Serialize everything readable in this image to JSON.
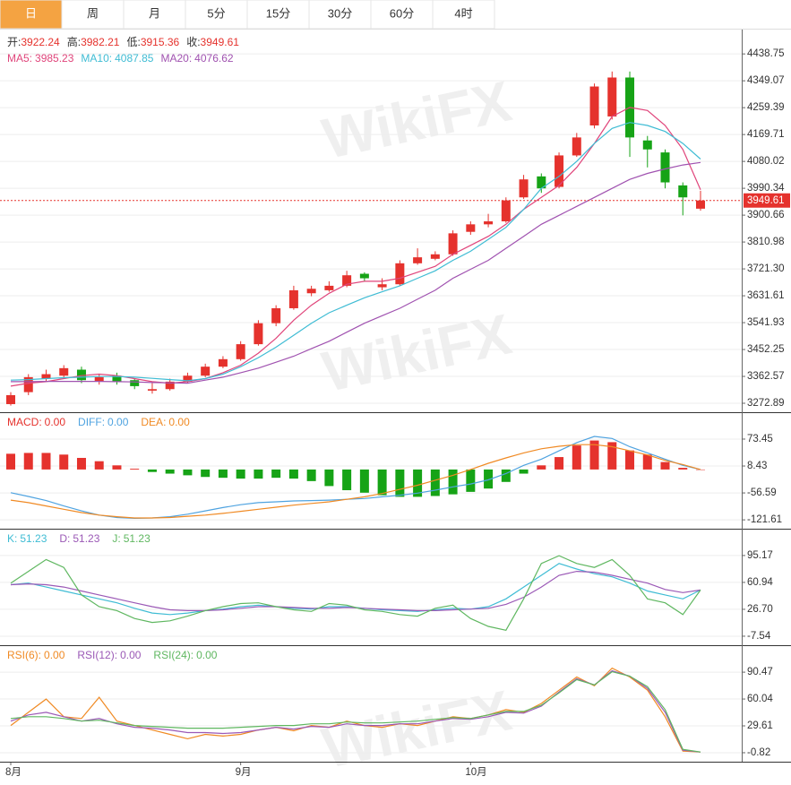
{
  "tabs": [
    "日",
    "周",
    "月",
    "5分",
    "15分",
    "30分",
    "60分",
    "4时"
  ],
  "watermark": "WikiFX",
  "chart_data": [
    {
      "type": "candlestick",
      "ohlc_labels": [
        "开:",
        "高:",
        "低:",
        "收:"
      ],
      "up_color": "#e5322d",
      "down_color": "#16a316",
      "open": [
        3270,
        3310,
        3355,
        3365,
        3385,
        3345,
        3365,
        3350,
        3315,
        3320,
        3345,
        3365,
        3395,
        3420,
        3470,
        3540,
        3590,
        3640,
        3650,
        3665,
        3705,
        3660,
        3670,
        3740,
        3755,
        3770,
        3845,
        3870,
        3880,
        3960,
        4030,
        3995,
        4100,
        4200,
        4230,
        4360,
        4150,
        4110,
        4000,
        3922.24
      ],
      "high": [
        3310,
        3370,
        3385,
        3400,
        3395,
        3370,
        3375,
        3355,
        3340,
        3355,
        3375,
        3405,
        3430,
        3480,
        3550,
        3600,
        3665,
        3665,
        3680,
        3715,
        3710,
        3690,
        3750,
        3790,
        3780,
        3850,
        3880,
        3905,
        3960,
        4035,
        4040,
        4110,
        4175,
        4340,
        4380,
        4380,
        4165,
        4120,
        4010,
        3982.21
      ],
      "low": [
        3265,
        3300,
        3345,
        3355,
        3340,
        3335,
        3335,
        3320,
        3305,
        3315,
        3340,
        3360,
        3390,
        3415,
        3465,
        3530,
        3585,
        3630,
        3645,
        3660,
        3680,
        3650,
        3665,
        3735,
        3750,
        3765,
        3835,
        3860,
        3875,
        3955,
        3975,
        3990,
        4095,
        4190,
        4220,
        4095,
        4060,
        3990,
        3900,
        3915.36
      ],
      "close": [
        3300,
        3360,
        3370,
        3390,
        3350,
        3360,
        3345,
        3330,
        3320,
        3345,
        3365,
        3395,
        3420,
        3470,
        3540,
        3590,
        3650,
        3655,
        3665,
        3700,
        3690,
        3670,
        3740,
        3760,
        3770,
        3840,
        3870,
        3880,
        3950,
        4020,
        3990,
        4100,
        4160,
        4330,
        4360,
        4160,
        4120,
        4010,
        3960,
        3949.61
      ],
      "series": [
        {
          "name": "MA5:",
          "color": "#e0457b",
          "values": [
            3330,
            3340,
            3345,
            3355,
            3365,
            3370,
            3365,
            3355,
            3345,
            3340,
            3345,
            3355,
            3375,
            3400,
            3440,
            3490,
            3550,
            3600,
            3640,
            3670,
            3680,
            3680,
            3690,
            3710,
            3730,
            3770,
            3800,
            3830,
            3870,
            3920,
            3960,
            4000,
            4060,
            4140,
            4230,
            4260,
            4250,
            4200,
            4120,
            3985.23
          ]
        },
        {
          "name": "MA10:",
          "color": "#3fbcd4",
          "values": [
            3350,
            3352,
            3355,
            3358,
            3360,
            3362,
            3362,
            3360,
            3356,
            3352,
            3348,
            3355,
            3370,
            3395,
            3425,
            3460,
            3500,
            3540,
            3575,
            3600,
            3625,
            3645,
            3665,
            3690,
            3715,
            3750,
            3780,
            3820,
            3860,
            3920,
            3990,
            4030,
            4080,
            4140,
            4190,
            4210,
            4200,
            4180,
            4140,
            4087.85
          ]
        },
        {
          "name": "MA20:",
          "color": "#a052b0",
          "values": [
            3345,
            3345,
            3346,
            3346,
            3346,
            3346,
            3345,
            3344,
            3342,
            3341,
            3340,
            3350,
            3360,
            3375,
            3390,
            3410,
            3430,
            3455,
            3480,
            3510,
            3540,
            3565,
            3590,
            3620,
            3650,
            3690,
            3720,
            3750,
            3790,
            3830,
            3870,
            3900,
            3930,
            3960,
            3990,
            4020,
            4040,
            4055,
            4068,
            4076.62
          ]
        }
      ],
      "ylim": [
        3243,
        4520
      ],
      "yticks": [
        4438.75,
        4349.07,
        4259.39,
        4169.71,
        4080.02,
        3990.34,
        3900.66,
        3810.98,
        {
          "value": 3721.3,
          "label": "3721.30"
        },
        3631.61,
        3541.93,
        3452.25,
        3362.57,
        3272.89
      ],
      "grid": true
    },
    {
      "type": "macd",
      "series": [
        {
          "name": "MACD:",
          "legend_label": "0.00",
          "color": "#e5322d",
          "down_color": "#16a316",
          "values": [
            38,
            40,
            40,
            36,
            28,
            20,
            10,
            2,
            -6,
            -10,
            -14,
            -18,
            -20,
            -22,
            -22,
            -20,
            -22,
            -28,
            -40,
            -50,
            -56,
            -62,
            -66,
            -66,
            -64,
            -60,
            -54,
            -46,
            -30,
            -10,
            10,
            30,
            58,
            70,
            66,
            46,
            36,
            18,
            4,
            0
          ]
        },
        {
          "name": "DIFF:",
          "legend_label": "0.00",
          "color": "#4fa3e0",
          "values": [
            -56,
            -65,
            -75,
            -88,
            -100,
            -110,
            -116,
            -118,
            -117,
            -114,
            -108,
            -100,
            -92,
            -85,
            -80,
            -78,
            -76,
            -75,
            -74,
            -72,
            -70,
            -66,
            -62,
            -57,
            -50,
            -42,
            -35,
            -25,
            -10,
            10,
            25,
            45,
            65,
            80,
            75,
            55,
            40,
            25,
            10,
            0
          ]
        },
        {
          "name": "DEA:",
          "legend_label": "0.00",
          "color": "#f08a24",
          "values": [
            -74,
            -80,
            -88,
            -96,
            -104,
            -110,
            -114,
            -117,
            -117,
            -116,
            -113,
            -110,
            -106,
            -101,
            -96,
            -91,
            -86,
            -82,
            -78,
            -72,
            -66,
            -58,
            -48,
            -38,
            -26,
            -14,
            0,
            15,
            28,
            40,
            50,
            56,
            60,
            60,
            55,
            45,
            35,
            22,
            12,
            0
          ]
        }
      ],
      "ylim": [
        -143,
        134
      ],
      "yticks": [
        73.45,
        8.43,
        -56.59,
        -121.61
      ],
      "grid": true
    },
    {
      "type": "line",
      "series": [
        {
          "name": "K:",
          "color": "#3fbcd4",
          "values": [
            58,
            60,
            55,
            50,
            45,
            40,
            35,
            28,
            22,
            20,
            22,
            25,
            27,
            30,
            32,
            30,
            28,
            27,
            30,
            30,
            28,
            26,
            25,
            24,
            26,
            28,
            27,
            30,
            40,
            55,
            70,
            85,
            78,
            72,
            68,
            60,
            50,
            45,
            40,
            51.23
          ]
        },
        {
          "name": "D:",
          "color": "#9b59b6",
          "values": [
            58,
            59,
            58,
            55,
            50,
            45,
            40,
            35,
            30,
            26,
            25,
            25,
            26,
            28,
            30,
            30,
            29,
            28,
            28,
            29,
            28,
            27,
            26,
            25,
            25,
            26,
            27,
            28,
            33,
            42,
            55,
            70,
            75,
            74,
            70,
            65,
            60,
            52,
            48,
            51.23
          ]
        },
        {
          "name": "J:",
          "color": "#5fb760",
          "values": [
            60,
            75,
            90,
            80,
            45,
            30,
            25,
            15,
            10,
            12,
            18,
            25,
            30,
            34,
            35,
            30,
            26,
            24,
            34,
            32,
            26,
            24,
            20,
            18,
            28,
            32,
            15,
            5,
            0,
            40,
            85,
            95,
            85,
            80,
            90,
            70,
            40,
            35,
            20,
            51.23
          ]
        }
      ],
      "ylim": [
        -19,
        127
      ],
      "yticks": [
        95.17,
        60.94,
        {
          "value": 26.7,
          "label": "26.70"
        },
        -7.54
      ],
      "grid": true
    },
    {
      "type": "line",
      "categories": [
        "8月",
        null,
        null,
        null,
        null,
        null,
        null,
        null,
        null,
        null,
        null,
        null,
        null,
        "9月",
        null,
        null,
        null,
        null,
        null,
        null,
        null,
        null,
        null,
        null,
        null,
        null,
        "10月",
        null,
        null,
        null,
        null,
        null,
        null,
        null,
        null,
        null,
        null,
        null,
        null,
        null
      ],
      "series": [
        {
          "name": "RSI(6):",
          "legend_label": "0.00",
          "color": "#f08a24",
          "values": [
            30,
            45,
            60,
            40,
            38,
            62,
            35,
            30,
            25,
            20,
            15,
            20,
            18,
            20,
            25,
            28,
            24,
            30,
            28,
            35,
            30,
            28,
            32,
            30,
            35,
            40,
            38,
            42,
            48,
            45,
            55,
            70,
            85,
            75,
            95,
            85,
            70,
            40,
            1,
            0
          ]
        },
        {
          "name": "RSI(12):",
          "legend_label": "0.00",
          "color": "#9b59b6",
          "values": [
            35,
            42,
            45,
            40,
            35,
            38,
            32,
            28,
            27,
            25,
            22,
            22,
            21,
            22,
            25,
            28,
            26,
            29,
            28,
            32,
            30,
            30,
            32,
            32,
            35,
            38,
            37,
            40,
            45,
            44,
            52,
            68,
            83,
            76,
            92,
            86,
            72,
            45,
            2,
            0
          ]
        },
        {
          "name": "RSI(24):",
          "legend_label": "0.00",
          "color": "#5fb760",
          "values": [
            38,
            40,
            40,
            38,
            35,
            36,
            33,
            30,
            29,
            28,
            27,
            27,
            27,
            28,
            29,
            30,
            30,
            32,
            32,
            34,
            33,
            33,
            34,
            35,
            37,
            39,
            38,
            42,
            46,
            46,
            53,
            67,
            82,
            76,
            91,
            86,
            74,
            48,
            3,
            0
          ]
        }
      ],
      "ylim": [
        -11,
        119
      ],
      "yticks": [
        90.47,
        60.04,
        29.61,
        -0.82
      ],
      "grid": true
    }
  ]
}
